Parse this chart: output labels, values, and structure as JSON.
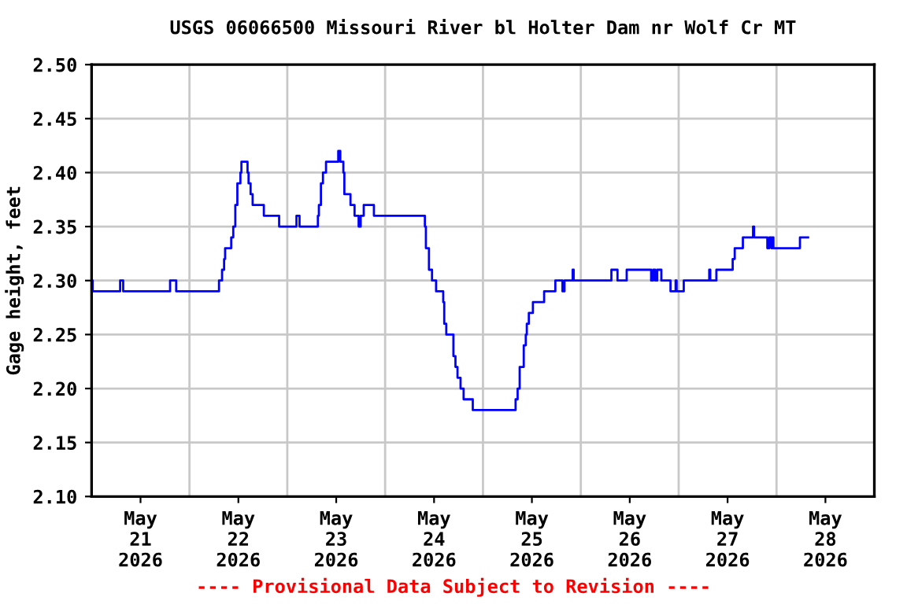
{
  "chart_data": {
    "type": "step",
    "title": "USGS 06066500 Missouri River bl Holter Dam nr Wolf Cr MT",
    "ylabel": "Gage height, feet",
    "annotations": [
      "---- Provisional Data Subject to Revision ----"
    ],
    "x": [
      "2026-05-20T12:00",
      "2026-05-20T12:15",
      "2026-05-20T19:00",
      "2026-05-20T19:45",
      "2026-05-21T07:15",
      "2026-05-21T08:45",
      "2026-05-21T19:15",
      "2026-05-21T20:00",
      "2026-05-21T20:30",
      "2026-05-21T20:45",
      "2026-05-21T22:15",
      "2026-05-21T22:45",
      "2026-05-21T23:15",
      "2026-05-21T23:45",
      "2026-05-22T00:30",
      "2026-05-22T00:45",
      "2026-05-22T02:15",
      "2026-05-22T02:30",
      "2026-05-22T03:00",
      "2026-05-22T03:30",
      "2026-05-22T06:15",
      "2026-05-22T10:00",
      "2026-05-22T14:15",
      "2026-05-22T15:00",
      "2026-05-22T19:30",
      "2026-05-22T19:45",
      "2026-05-22T20:15",
      "2026-05-22T20:45",
      "2026-05-22T21:30",
      "2026-05-23T00:30",
      "2026-05-23T01:00",
      "2026-05-23T01:45",
      "2026-05-23T02:00",
      "2026-05-23T03:30",
      "2026-05-23T04:30",
      "2026-05-23T05:30",
      "2026-05-23T06:00",
      "2026-05-23T06:45",
      "2026-05-23T09:15",
      "2026-05-23T21:45",
      "2026-05-23T22:00",
      "2026-05-23T22:45",
      "2026-05-23T23:30",
      "2026-05-24T00:30",
      "2026-05-24T02:15",
      "2026-05-24T02:30",
      "2026-05-24T03:00",
      "2026-05-24T04:45",
      "2026-05-24T05:15",
      "2026-05-24T05:45",
      "2026-05-24T06:30",
      "2026-05-24T07:15",
      "2026-05-24T09:30",
      "2026-05-24T20:00",
      "2026-05-24T20:30",
      "2026-05-24T21:00",
      "2026-05-24T22:00",
      "2026-05-24T22:30",
      "2026-05-24T22:45",
      "2026-05-24T23:15",
      "2026-05-25T00:15",
      "2026-05-25T03:00",
      "2026-05-25T05:45",
      "2026-05-25T07:30",
      "2026-05-25T08:00",
      "2026-05-25T10:00",
      "2026-05-25T10:15",
      "2026-05-25T19:30",
      "2026-05-25T21:00",
      "2026-05-25T23:15",
      "2026-05-26T05:15",
      "2026-05-26T05:45",
      "2026-05-26T06:15",
      "2026-05-26T06:45",
      "2026-05-26T07:45",
      "2026-05-26T10:00",
      "2026-05-26T11:15",
      "2026-05-26T11:30",
      "2026-05-26T13:15",
      "2026-05-26T19:30",
      "2026-05-26T19:45",
      "2026-05-26T21:15",
      "2026-05-27T01:15",
      "2026-05-27T01:45",
      "2026-05-27T03:45",
      "2026-05-27T06:15",
      "2026-05-27T06:30",
      "2026-05-27T09:45",
      "2026-05-27T10:15",
      "2026-05-27T10:45",
      "2026-05-27T11:00",
      "2026-05-27T11:15",
      "2026-05-27T17:45",
      "2026-05-27T19:45"
    ],
    "series": [
      {
        "color": "#0000ff",
        "values": [
          2.3,
          2.29,
          2.3,
          2.29,
          2.3,
          2.29,
          2.3,
          2.31,
          2.32,
          2.33,
          2.34,
          2.35,
          2.37,
          2.39,
          2.4,
          2.41,
          2.4,
          2.39,
          2.38,
          2.37,
          2.36,
          2.35,
          2.36,
          2.35,
          2.36,
          2.37,
          2.39,
          2.4,
          2.41,
          2.42,
          2.41,
          2.4,
          2.38,
          2.37,
          2.36,
          2.35,
          2.36,
          2.37,
          2.36,
          2.35,
          2.33,
          2.31,
          2.3,
          2.29,
          2.28,
          2.26,
          2.25,
          2.23,
          2.22,
          2.21,
          2.2,
          2.19,
          2.18,
          2.19,
          2.2,
          2.22,
          2.24,
          2.25,
          2.26,
          2.27,
          2.28,
          2.29,
          2.3,
          2.29,
          2.3,
          2.31,
          2.3,
          2.31,
          2.3,
          2.31,
          2.3,
          2.31,
          2.3,
          2.31,
          2.3,
          2.29,
          2.3,
          2.29,
          2.3,
          2.31,
          2.3,
          2.31,
          2.32,
          2.33,
          2.34,
          2.35,
          2.34,
          2.33,
          2.34,
          2.33,
          2.34,
          2.33,
          2.34,
          2.34
        ]
      }
    ],
    "xlim": [
      "2026-05-20T12:00",
      "2026-05-28T12:00"
    ],
    "xticks": [
      {
        "value": "2026-05-21T00:00",
        "label": "May\n21\n2026"
      },
      {
        "value": "2026-05-22T00:00",
        "label": "May\n22\n2026"
      },
      {
        "value": "2026-05-23T00:00",
        "label": "May\n23\n2026"
      },
      {
        "value": "2026-05-24T00:00",
        "label": "May\n24\n2026"
      },
      {
        "value": "2026-05-25T00:00",
        "label": "May\n25\n2026"
      },
      {
        "value": "2026-05-26T00:00",
        "label": "May\n26\n2026"
      },
      {
        "value": "2026-05-27T00:00",
        "label": "May\n27\n2026"
      },
      {
        "value": "2026-05-28T00:00",
        "label": "May\n28\n2026"
      },
      {
        "value": "2026-05-21T12:00",
        "label": null
      },
      {
        "value": "2026-05-22T12:00",
        "label": null
      },
      {
        "value": "2026-05-23T12:00",
        "label": null
      },
      {
        "value": "2026-05-24T12:00",
        "label": null
      },
      {
        "value": "2026-05-25T12:00",
        "label": null
      },
      {
        "value": "2026-05-26T12:00",
        "label": null
      },
      {
        "value": "2026-05-27T12:00",
        "label": null
      }
    ],
    "ylim": [
      2.1,
      2.5
    ],
    "yticks": [
      {
        "value": 2.1,
        "label": "2.10"
      },
      {
        "value": 2.15,
        "label": "2.15"
      },
      {
        "value": 2.2,
        "label": "2.20"
      },
      {
        "value": 2.25,
        "label": "2.25"
      },
      {
        "value": 2.3,
        "label": "2.30"
      },
      {
        "value": 2.35,
        "label": "2.35"
      },
      {
        "value": 2.4,
        "label": "2.40"
      },
      {
        "value": 2.45,
        "label": "2.45"
      },
      {
        "value": 2.5,
        "label": "2.50"
      }
    ],
    "grid": true,
    "line_style": "solid",
    "legend": false
  }
}
